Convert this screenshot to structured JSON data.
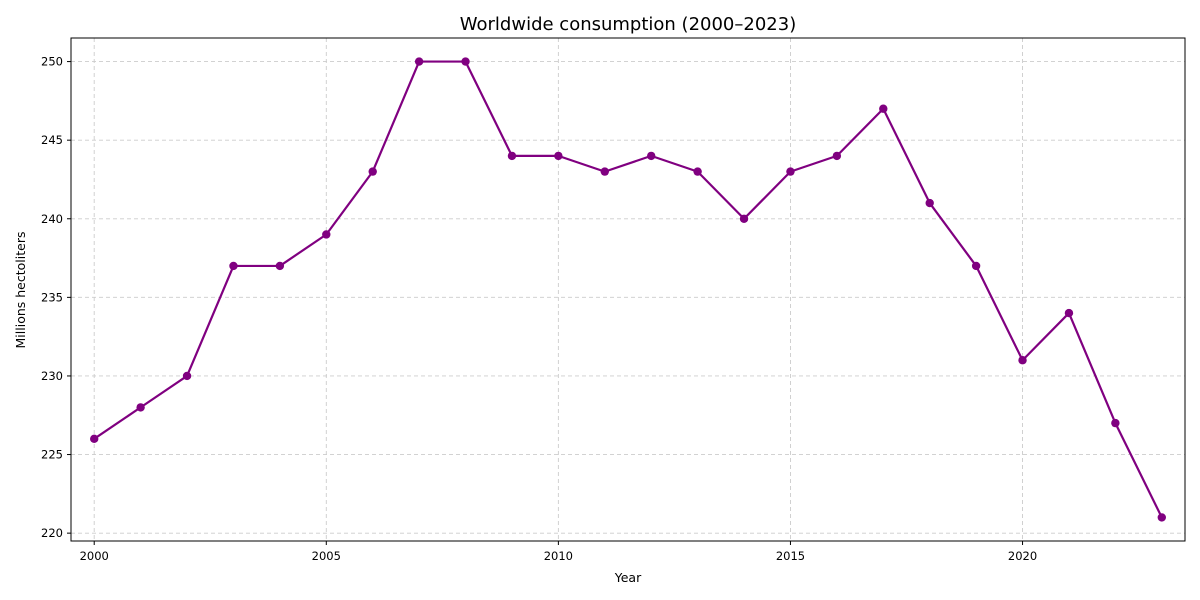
{
  "chart_data": {
    "type": "line",
    "title": "Worldwide consumption (2000–2023)",
    "xlabel": "Year",
    "ylabel": "Millions hectoliters",
    "x": [
      2000,
      2001,
      2002,
      2003,
      2004,
      2005,
      2006,
      2007,
      2008,
      2009,
      2010,
      2011,
      2012,
      2013,
      2014,
      2015,
      2016,
      2017,
      2018,
      2019,
      2020,
      2021,
      2022,
      2023
    ],
    "series": [
      {
        "values": [
          226,
          228,
          230,
          237,
          237,
          239,
          243,
          250,
          250,
          244,
          244,
          243,
          244,
          243,
          240,
          243,
          244,
          247,
          241,
          237,
          231,
          234,
          227,
          221
        ],
        "color": "#800080",
        "marker": "circle"
      }
    ],
    "xlim": [
      1999.5,
      2023.5
    ],
    "ylim": [
      219.5,
      251.5
    ],
    "xticks": [
      2000,
      2005,
      2010,
      2015,
      2020
    ],
    "yticks": [
      220,
      225,
      230,
      235,
      240,
      245,
      250
    ],
    "grid": true,
    "grid_style": "dashed"
  }
}
